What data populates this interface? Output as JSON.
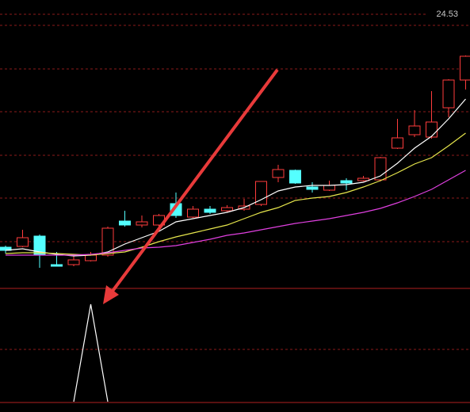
{
  "chart_data": [
    {
      "type": "candlestick",
      "ylim": [
        21.11,
        24.71
      ],
      "yticks": [
        24.53
      ],
      "up_color": "#ff3c3c",
      "down_color": "#54ffff",
      "open": [
        21.59,
        21.6,
        21.73,
        21.37,
        21.37,
        21.42,
        21.49,
        21.92,
        21.87,
        21.87,
        22.14,
        21.97,
        22.07,
        22.05,
        22.07,
        22.13,
        22.47,
        22.56,
        22.35,
        22.31,
        22.43,
        22.43,
        22.44,
        22.84,
        23.01,
        22.98,
        23.35,
        23.7
      ],
      "high": [
        21.61,
        21.81,
        21.75,
        21.53,
        21.49,
        21.53,
        21.85,
        22.05,
        21.99,
        22.01,
        22.28,
        22.11,
        22.11,
        22.12,
        22.2,
        22.42,
        22.63,
        22.57,
        22.41,
        22.43,
        22.46,
        22.49,
        22.73,
        23.21,
        23.32,
        23.56,
        23.71,
        24.01
      ],
      "low": [
        21.51,
        21.59,
        21.33,
        21.35,
        21.35,
        21.41,
        21.47,
        21.85,
        21.84,
        21.85,
        21.96,
        21.96,
        22.01,
        22.03,
        22.05,
        22.11,
        22.41,
        22.39,
        22.28,
        22.3,
        22.31,
        22.42,
        22.42,
        22.83,
        22.98,
        22.96,
        23.23,
        23.58
      ],
      "close": [
        21.55,
        21.71,
        21.49,
        21.35,
        21.43,
        21.49,
        21.83,
        21.87,
        21.91,
        21.99,
        21.99,
        22.07,
        22.03,
        22.09,
        22.11,
        22.42,
        22.57,
        22.4,
        22.32,
        22.37,
        22.4,
        22.46,
        22.72,
        22.97,
        23.12,
        23.17,
        23.7,
        24.0
      ],
      "series": [
        {
          "color": "#ffffff",
          "values": [
            21.55,
            21.57,
            21.53,
            21.5,
            21.48,
            21.49,
            21.53,
            21.63,
            21.71,
            21.79,
            21.91,
            21.95,
            21.99,
            22.03,
            22.09,
            22.19,
            22.3,
            22.35,
            22.37,
            22.37,
            22.38,
            22.41,
            22.49,
            22.65,
            22.84,
            22.99,
            23.21,
            23.46
          ]
        },
        {
          "color": "#e6e64c",
          "values": [
            21.51,
            21.52,
            21.52,
            21.51,
            21.5,
            21.49,
            21.51,
            21.53,
            21.59,
            21.66,
            21.72,
            21.77,
            21.82,
            21.87,
            21.95,
            22.03,
            22.09,
            22.18,
            22.21,
            22.23,
            22.28,
            22.35,
            22.43,
            22.53,
            22.64,
            22.72,
            22.87,
            23.03
          ]
        },
        {
          "color": "#e040e0",
          "values": [
            21.49,
            21.49,
            21.49,
            21.49,
            21.49,
            21.5,
            21.52,
            21.55,
            21.58,
            21.59,
            21.61,
            21.65,
            21.69,
            21.74,
            21.77,
            21.81,
            21.85,
            21.89,
            21.92,
            21.95,
            21.99,
            22.03,
            22.08,
            22.15,
            22.23,
            22.32,
            22.44,
            22.56
          ]
        }
      ]
    },
    {
      "type": "line",
      "ylim": [
        0,
        1
      ],
      "series": [
        {
          "color": "#ffffff",
          "values": [
            null,
            null,
            null,
            null,
            0,
            1,
            0,
            null,
            null,
            null,
            null,
            null,
            null,
            null,
            null,
            null,
            null,
            null,
            null,
            null,
            null,
            null,
            null,
            null,
            null,
            null,
            null,
            null
          ]
        }
      ]
    }
  ]
}
